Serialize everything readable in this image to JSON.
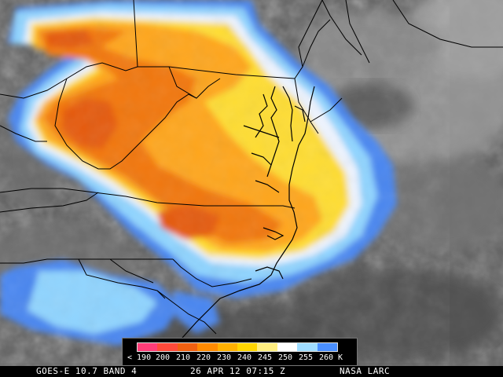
{
  "footer": {
    "satellite": "GOES-E 10.7 BAND 4",
    "datetime": "26 APR 12 07:15 Z",
    "credit": "NASA LARC"
  },
  "legend": {
    "labels": [
      "< 190",
      "200",
      "210",
      "220",
      "230",
      "240",
      "245",
      "250",
      "255",
      "260",
      "K"
    ],
    "colors": [
      "#ff3d78",
      "#ff4a3a",
      "#f06010",
      "#ff8a00",
      "#ffb000",
      "#ffd500",
      "#ffee80",
      "#ffffff",
      "#9fdcff",
      "#4a8fff"
    ]
  },
  "palette": {
    "cloud_warm": "#ff8c00",
    "cloud_hot": "#f26d0a",
    "cloud_yellow": "#ffcc33",
    "cloud_cyan": "#8fd4ff",
    "cloud_blue": "#4a86f0",
    "background_gray": "#5a5a5a",
    "boundary": "#000000"
  }
}
